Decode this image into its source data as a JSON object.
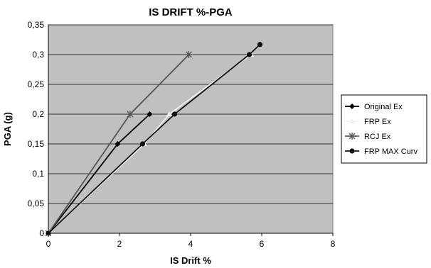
{
  "chart_data": {
    "type": "line",
    "title": "IS DRIFT %-PGA",
    "xlabel": "IS Drift %",
    "ylabel": "PGA (g)",
    "xlim": [
      0,
      8
    ],
    "ylim": [
      0,
      0.35
    ],
    "x_ticks": [
      "0",
      "2",
      "4",
      "6",
      "8"
    ],
    "y_ticks": [
      "0",
      "0,05",
      "0,1",
      "0,15",
      "0,2",
      "0,25",
      "0,3",
      "0,35"
    ],
    "grid": "horizontal",
    "plot_background": "#c0c0c0",
    "legend_position": "right",
    "series": [
      {
        "name": "Original Ex",
        "color": "#000000",
        "marker": "diamond",
        "x": [
          0,
          1.95,
          2.85
        ],
        "y": [
          0,
          0.15,
          0.2
        ]
      },
      {
        "name": "FRP Ex",
        "color": "#f0f0f0",
        "marker": "triangle",
        "x": [
          0,
          2.7,
          3.4,
          5.7
        ],
        "y": [
          0,
          0.15,
          0.2,
          0.3
        ]
      },
      {
        "name": "RCJ Ex",
        "color": "#555555",
        "marker": "star",
        "x": [
          0,
          2.3,
          3.95
        ],
        "y": [
          0,
          0.2,
          0.3
        ]
      },
      {
        "name": "FRP MAX Curv",
        "color": "#111111",
        "marker": "circle",
        "x": [
          0,
          2.65,
          3.55,
          5.65,
          5.95
        ],
        "y": [
          0,
          0.15,
          0.2,
          0.3,
          0.317
        ]
      }
    ]
  }
}
